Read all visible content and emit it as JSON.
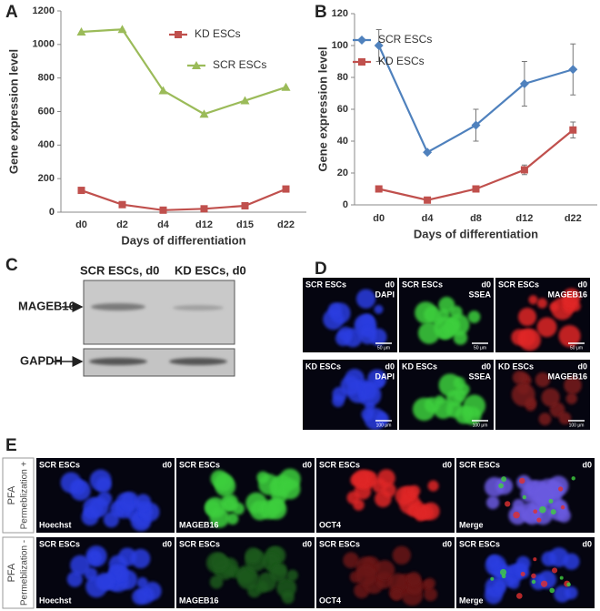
{
  "panels": [
    "A",
    "B",
    "C",
    "D",
    "E"
  ],
  "chart_data": [
    {
      "type": "line",
      "categories": [
        "d0",
        "d2",
        "d4",
        "d12",
        "d15",
        "d22"
      ],
      "series": [
        {
          "name": "KD ESCs",
          "color": "#c0504d",
          "marker": "square",
          "values": [
            130,
            45,
            12,
            20,
            38,
            138
          ]
        },
        {
          "name": "SCR ESCs",
          "color": "#9bbb59",
          "marker": "triangle",
          "values": [
            1075,
            1090,
            725,
            585,
            665,
            745
          ]
        }
      ],
      "ylim": [
        0,
        1200
      ],
      "yticks": [
        0,
        200,
        400,
        600,
        800,
        1000,
        1200
      ],
      "ylabel": "Gene expression level",
      "xlabel": "Days of differentiation"
    },
    {
      "type": "line",
      "categories": [
        "d0",
        "d4",
        "d8",
        "d12",
        "d22"
      ],
      "series": [
        {
          "name": "SCR ESCs",
          "color": "#4f81bd",
          "marker": "diamond",
          "values": [
            100,
            33,
            50,
            76,
            85
          ],
          "errors": [
            10,
            1,
            10,
            14,
            16
          ]
        },
        {
          "name": "KD ESCs",
          "color": "#c0504d",
          "marker": "square",
          "values": [
            10,
            3,
            10,
            22,
            47
          ],
          "errors": [
            1,
            0.5,
            1,
            3,
            5
          ]
        }
      ],
      "ylim": [
        0,
        120
      ],
      "yticks": [
        0,
        20,
        40,
        60,
        80,
        100,
        120
      ],
      "ylabel": "Gene expression level",
      "xlabel": "Days of differentiation"
    }
  ],
  "blot": {
    "columns": [
      "SCR ESCs, d0",
      "KD ESCs, d0"
    ],
    "rows": [
      "MAGEB16",
      "GAPDH"
    ]
  },
  "panel_d": {
    "tiles": [
      {
        "group": "SCR ESCs",
        "day": "d0",
        "stain": "DAPI",
        "scale": "50 μm",
        "color": "#2b3ee0"
      },
      {
        "group": "SCR ESCs",
        "day": "d0",
        "stain": "SSEA",
        "scale": "50 μm",
        "color": "#3ecf3e"
      },
      {
        "group": "SCR ESCs",
        "day": "d0",
        "stain": "MAGEB16",
        "scale": "50 μm",
        "color": "#e02828"
      },
      {
        "group": "KD ESCs",
        "day": "d0",
        "stain": "DAPI",
        "scale": "100 μm",
        "color": "#2b3ee0"
      },
      {
        "group": "KD ESCs",
        "day": "d0",
        "stain": "SSEA",
        "scale": "100 μm",
        "color": "#3ecf3e"
      },
      {
        "group": "KD ESCs",
        "day": "d0",
        "stain": "MAGEB16",
        "scale": "100 μm",
        "color": "#7a1c1c"
      }
    ]
  },
  "panel_e": {
    "rows": [
      {
        "condition": "PFA",
        "permeabilization": "Permeblization +",
        "tiles": [
          {
            "group": "SCR ESCs",
            "day": "d0",
            "stain": "Hoechst",
            "color": "#2b3ee0"
          },
          {
            "group": "SCR ESCs",
            "day": "d0",
            "stain": "MAGEB16",
            "color": "#3ecf3e"
          },
          {
            "group": "SCR ESCs",
            "day": "d0",
            "stain": "OCT4",
            "color": "#e02828"
          },
          {
            "group": "SCR ESCs",
            "day": "d0",
            "stain": "Merge",
            "color": "#6a5ae0"
          }
        ]
      },
      {
        "condition": "PFA",
        "permeabilization": "Permeblization -",
        "tiles": [
          {
            "group": "SCR ESCs",
            "day": "d0",
            "stain": "Hoechst",
            "color": "#2b3ee0"
          },
          {
            "group": "SCR ESCs",
            "day": "d0",
            "stain": "MAGEB16",
            "color": "#1f5a1f"
          },
          {
            "group": "SCR ESCs",
            "day": "d0",
            "stain": "OCT4",
            "color": "#6a1818"
          },
          {
            "group": "SCR ESCs",
            "day": "d0",
            "stain": "Merge",
            "color": "#2b3ee0"
          }
        ]
      }
    ]
  }
}
